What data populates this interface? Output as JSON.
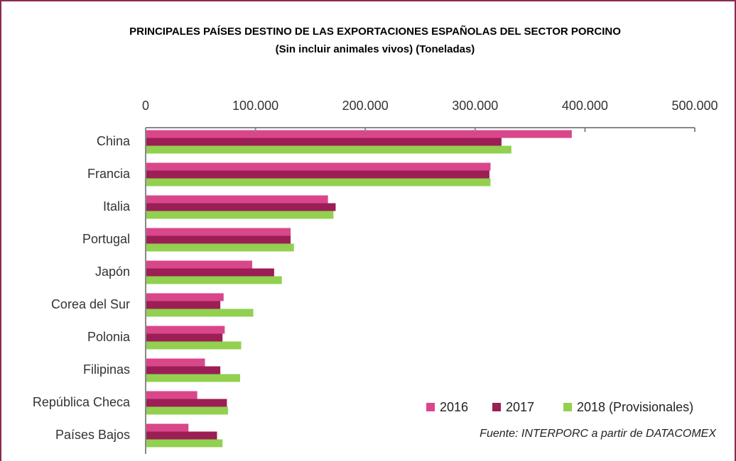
{
  "chart_data": {
    "type": "barh",
    "title": "PRINCIPALES PAÍSES DESTINO DE LAS EXPORTACIONES ESPAÑOLAS DEL SECTOR PORCINO",
    "subtitle": "(Sin incluir animales vivos) (Toneladas)",
    "source": "Fuente: INTERPORC  a partir de DATACOMEX",
    "categories": [
      "China",
      "Francia",
      "Italia",
      "Portugal",
      "Japón",
      "Corea del Sur",
      "Polonia",
      "Filipinas",
      "República Checa",
      "Países Bajos"
    ],
    "series": [
      {
        "name": "2016",
        "color": "#d9478a",
        "values": [
          388000,
          314000,
          166000,
          132000,
          97000,
          71000,
          72000,
          54000,
          47000,
          39000
        ]
      },
      {
        "name": "2017",
        "color": "#9b1f55",
        "values": [
          324000,
          313000,
          173000,
          132000,
          117000,
          68000,
          70000,
          68000,
          74000,
          65000
        ]
      },
      {
        "name": "2018 (Provisionales)",
        "color": "#92d050",
        "values": [
          333000,
          314000,
          171000,
          135000,
          124000,
          98000,
          87000,
          86000,
          75000,
          70000
        ]
      }
    ],
    "xlim": [
      0,
      500000
    ],
    "xticks": [
      0,
      {
        "value": 100000,
        "label": "100.000"
      },
      {
        "value": 200000,
        "label": "200.000"
      },
      {
        "value": 300000,
        "label": "300.000"
      },
      {
        "value": 400000,
        "label": "400.000"
      },
      {
        "value": 500000,
        "label": "500.000"
      }
    ],
    "legend": "lower right",
    "grid": false
  }
}
